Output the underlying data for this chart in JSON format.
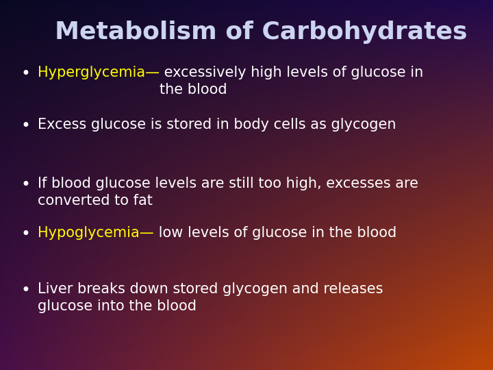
{
  "title": "Metabolism of Carbohydrates",
  "title_color": "#ccd4f0",
  "title_fontsize": 26,
  "bullet_color": "#ffffff",
  "highlight_color": "#ffff00",
  "bullet_fontsize": 15,
  "bullets": [
    {
      "highlight": "Hyperglycemia—",
      "rest": " excessively high levels of glucose in\nthe blood"
    },
    {
      "highlight": "",
      "rest": "Excess glucose is stored in body cells as glycogen"
    },
    {
      "highlight": "",
      "rest": "If blood glucose levels are still too high, excesses are\nconverted to fat"
    },
    {
      "highlight": "Hypoglycemia—",
      "rest": " low levels of glucose in the blood"
    },
    {
      "highlight": "",
      "rest": "Liver breaks down stored glycogen and releases\nglucose into the blood"
    }
  ],
  "tl": [
    0.035,
    0.035,
    0.13
  ],
  "tr": [
    0.13,
    0.035,
    0.3
  ],
  "bl": [
    0.28,
    0.06,
    0.28
  ],
  "br": [
    0.75,
    0.28,
    0.02
  ]
}
